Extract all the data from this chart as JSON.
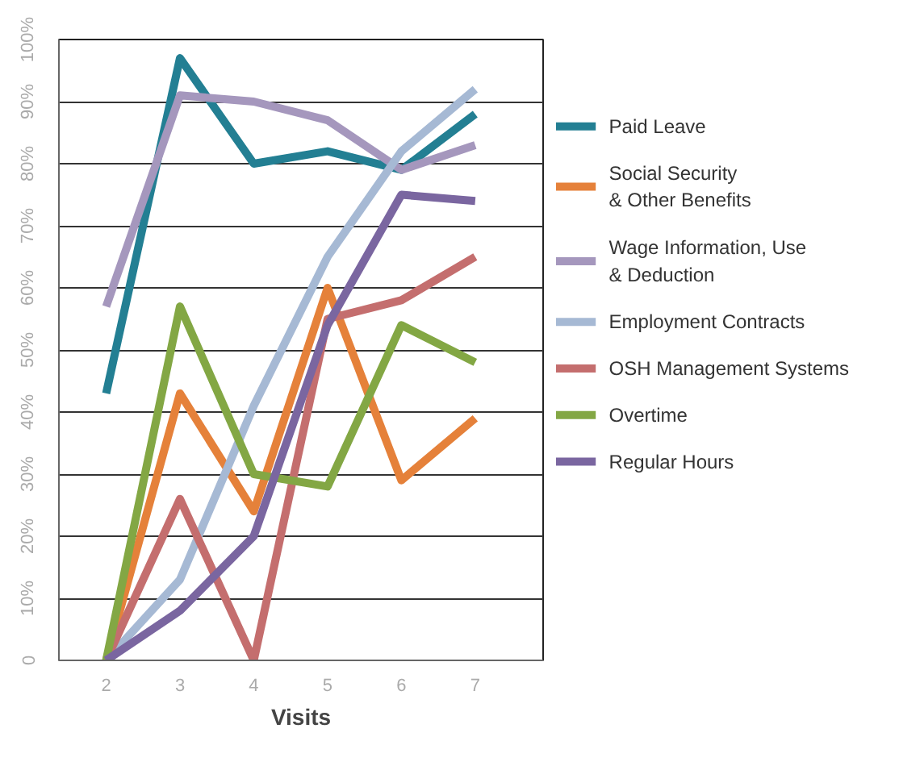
{
  "chart_data": {
    "type": "line",
    "xlabel": "Visits",
    "x": [
      2,
      3,
      4,
      5,
      6,
      7
    ],
    "xlim": [
      1.36,
      7.92
    ],
    "xticks": [
      2,
      3,
      4,
      5,
      6,
      7
    ],
    "ylim": [
      0,
      100
    ],
    "yticks": [
      {
        "value": 0,
        "label": "0"
      },
      {
        "value": 10,
        "label": "10%"
      },
      {
        "value": 20,
        "label": "20%"
      },
      {
        "value": 30,
        "label": "30%"
      },
      {
        "value": 40,
        "label": "40%"
      },
      {
        "value": 50,
        "label": "50%"
      },
      {
        "value": 60,
        "label": "60%"
      },
      {
        "value": 70,
        "label": "70%"
      },
      {
        "value": 80,
        "label": "80%"
      },
      {
        "value": 90,
        "label": "90%"
      },
      {
        "value": 100,
        "label": "100%"
      }
    ],
    "grid": "y",
    "legend": "right",
    "marker": "none",
    "line_style": "solid",
    "series": [
      {
        "name": "Paid Leave",
        "color": "#237f93",
        "values": [
          43,
          97,
          80,
          82,
          79,
          88
        ]
      },
      {
        "name": "Social Security\n& Other Benefits",
        "color": "#e5813a",
        "values": [
          0,
          43,
          24,
          60,
          29,
          39
        ]
      },
      {
        "name": "Wage Information, Use\n& Deduction",
        "color": "#a597bd",
        "values": [
          57,
          91,
          90,
          87,
          79,
          83
        ]
      },
      {
        "name": "Employment Contracts",
        "color": "#a6b9d4",
        "values": [
          0,
          13,
          41,
          65,
          82,
          92
        ]
      },
      {
        "name": "OSH Management Systems",
        "color": "#c46e6e",
        "values": [
          0,
          26,
          0,
          55,
          58,
          65
        ]
      },
      {
        "name": "Overtime",
        "color": "#83a744",
        "values": [
          0,
          57,
          30,
          28,
          54,
          48
        ]
      },
      {
        "name": "Regular Hours",
        "color": "#7a66a0",
        "values": [
          0,
          8,
          20,
          54,
          75,
          74
        ]
      }
    ]
  }
}
